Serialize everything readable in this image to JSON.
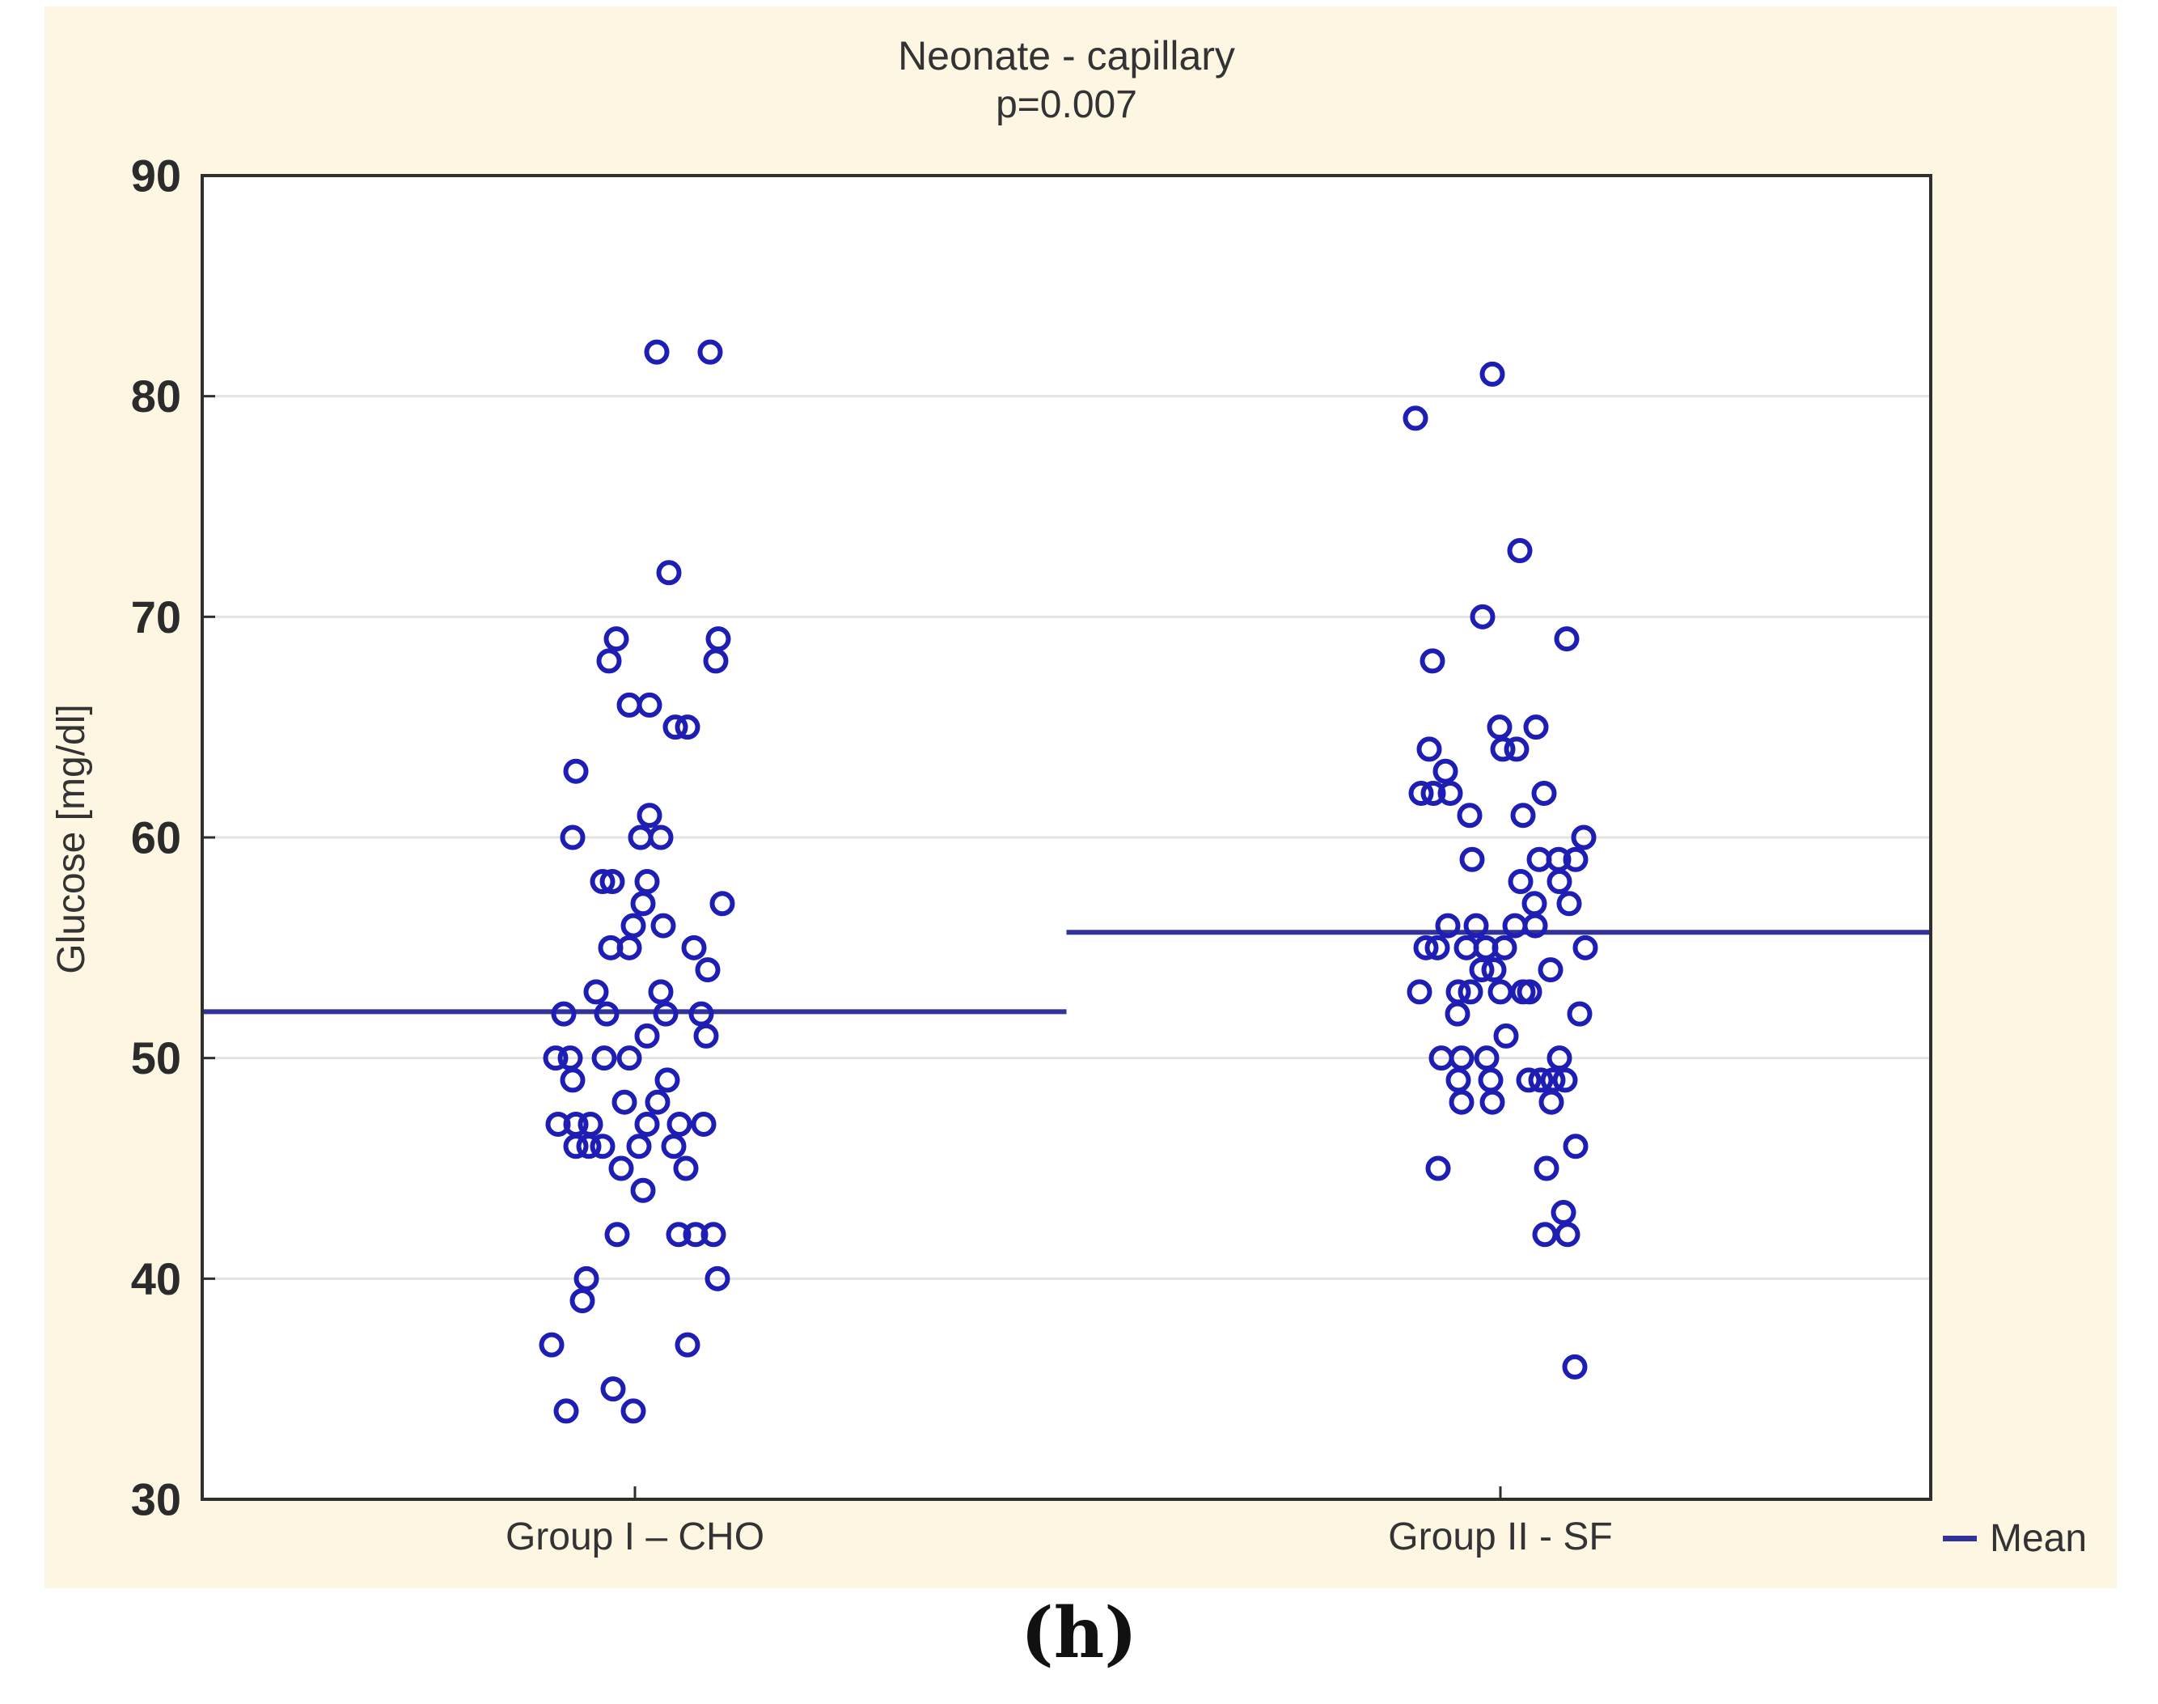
{
  "figure": {
    "caption": "(h)",
    "colors": {
      "figure_background": "#fcf6e3",
      "plot_background": "#ffffff",
      "marker_blue": "#1e1eb4",
      "mean_line": "#32329b",
      "gridline": "#e3e3e3",
      "axis": "#2f2f2f",
      "text": "#333333"
    }
  },
  "chart_data": {
    "type": "scatter",
    "title": "Neonate - capillary",
    "subtitle": "p=0.007",
    "ylabel": "Glucose [mg/dl]",
    "ylim": [
      30,
      90
    ],
    "yticks": [
      90,
      80,
      70,
      60,
      50,
      40,
      30
    ],
    "grid": "horizontal",
    "legend_position": "bottom-right",
    "legend": [
      {
        "label": "Mean",
        "symbol": "line"
      }
    ],
    "categories": [
      "Group I – CHO",
      "Group II - SF"
    ],
    "marker": "open-circle",
    "series": [
      {
        "name": "Group I – CHO",
        "mean": 52.1,
        "mean_line_span": "left-half",
        "points": [
          [
            82,
            27
          ],
          [
            82,
            93
          ],
          [
            72,
            42
          ],
          [
            69,
            -23
          ],
          [
            69,
            103
          ],
          [
            68,
            -32
          ],
          [
            68,
            100
          ],
          [
            66,
            -7
          ],
          [
            66,
            18
          ],
          [
            65,
            50
          ],
          [
            65,
            65
          ],
          [
            63,
            -73
          ],
          [
            61,
            18
          ],
          [
            60,
            -77
          ],
          [
            60,
            7
          ],
          [
            60,
            32
          ],
          [
            58,
            -40
          ],
          [
            58,
            -28
          ],
          [
            58,
            15
          ],
          [
            57,
            10
          ],
          [
            57,
            108
          ],
          [
            56,
            -2
          ],
          [
            56,
            35
          ],
          [
            55,
            -30
          ],
          [
            55,
            -7
          ],
          [
            55,
            73
          ],
          [
            54,
            90
          ],
          [
            53,
            -48
          ],
          [
            53,
            32
          ],
          [
            52,
            -88
          ],
          [
            52,
            -35
          ],
          [
            52,
            38
          ],
          [
            52,
            82
          ],
          [
            51,
            15
          ],
          [
            51,
            88
          ],
          [
            50,
            -98
          ],
          [
            50,
            -80
          ],
          [
            50,
            -38
          ],
          [
            50,
            -7
          ],
          [
            49,
            -77
          ],
          [
            49,
            40
          ],
          [
            48,
            -13
          ],
          [
            48,
            28
          ],
          [
            47,
            -95
          ],
          [
            47,
            -73
          ],
          [
            47,
            -55
          ],
          [
            47,
            15
          ],
          [
            47,
            55
          ],
          [
            47,
            85
          ],
          [
            46,
            -73
          ],
          [
            46,
            -57
          ],
          [
            46,
            -40
          ],
          [
            46,
            5
          ],
          [
            46,
            48
          ],
          [
            45,
            -17
          ],
          [
            45,
            63
          ],
          [
            44,
            10
          ],
          [
            42,
            -22
          ],
          [
            42,
            54
          ],
          [
            42,
            75
          ],
          [
            42,
            97
          ],
          [
            40,
            -60
          ],
          [
            40,
            102
          ],
          [
            39,
            -65
          ],
          [
            37,
            -103
          ],
          [
            37,
            65
          ],
          [
            35,
            -27
          ],
          [
            34,
            -85
          ],
          [
            34,
            -2
          ]
        ]
      },
      {
        "name": "Group II - SF",
        "mean": 55.7,
        "mean_line_span": "right-half",
        "points": [
          [
            81,
            -10
          ],
          [
            79,
            -105
          ],
          [
            73,
            24
          ],
          [
            70,
            -22
          ],
          [
            69,
            82
          ],
          [
            68,
            -84
          ],
          [
            65,
            -1
          ],
          [
            65,
            44
          ],
          [
            64,
            -88
          ],
          [
            64,
            3
          ],
          [
            64,
            20
          ],
          [
            63,
            -68
          ],
          [
            62,
            -98
          ],
          [
            62,
            -83
          ],
          [
            62,
            -62
          ],
          [
            62,
            54
          ],
          [
            61,
            -38
          ],
          [
            61,
            28
          ],
          [
            60,
            103
          ],
          [
            59,
            -35
          ],
          [
            59,
            48
          ],
          [
            59,
            72
          ],
          [
            59,
            93
          ],
          [
            58,
            25
          ],
          [
            58,
            73
          ],
          [
            57,
            42
          ],
          [
            57,
            85
          ],
          [
            56,
            -65
          ],
          [
            56,
            -30
          ],
          [
            56,
            18
          ],
          [
            56,
            43
          ],
          [
            55,
            -92
          ],
          [
            55,
            -78
          ],
          [
            55,
            -42
          ],
          [
            55,
            -18
          ],
          [
            55,
            5
          ],
          [
            55,
            105
          ],
          [
            54,
            -23
          ],
          [
            54,
            -8
          ],
          [
            54,
            62
          ],
          [
            53,
            -100
          ],
          [
            53,
            -52
          ],
          [
            53,
            -37
          ],
          [
            53,
            0
          ],
          [
            53,
            28
          ],
          [
            53,
            36
          ],
          [
            52,
            -53
          ],
          [
            52,
            98
          ],
          [
            51,
            7
          ],
          [
            50,
            -73
          ],
          [
            50,
            -48
          ],
          [
            50,
            -17
          ],
          [
            50,
            73
          ],
          [
            49,
            -52
          ],
          [
            49,
            -12
          ],
          [
            49,
            35
          ],
          [
            49,
            50
          ],
          [
            49,
            65
          ],
          [
            49,
            80
          ],
          [
            48,
            -48
          ],
          [
            48,
            -10
          ],
          [
            48,
            63
          ],
          [
            46,
            93
          ],
          [
            45,
            -77
          ],
          [
            45,
            57
          ],
          [
            43,
            78
          ],
          [
            42,
            55
          ],
          [
            42,
            83
          ],
          [
            36,
            92
          ]
        ]
      }
    ]
  }
}
